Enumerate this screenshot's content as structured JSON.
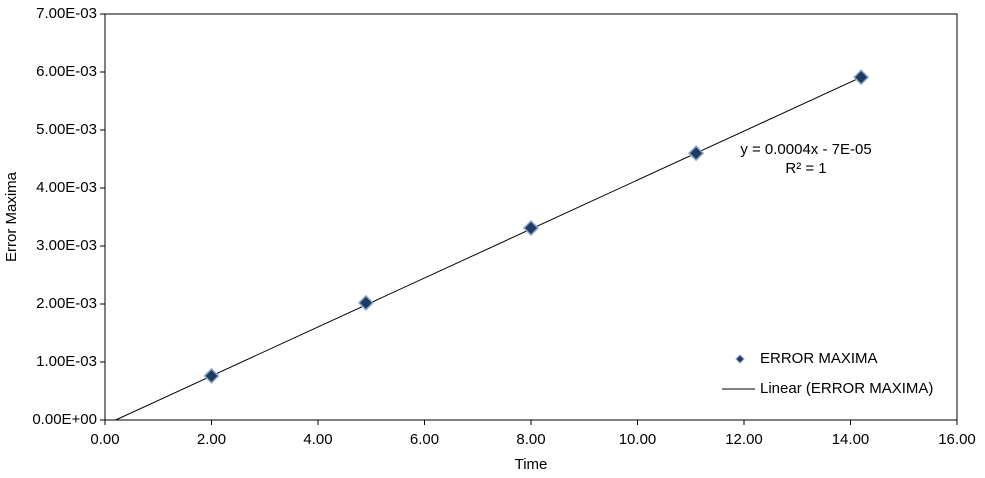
{
  "chart_data": {
    "type": "scatter",
    "x_label": "Time",
    "y_label": "Error Maxima",
    "series": [
      {
        "name": "ERROR MAXIMA",
        "color": "#1f3b64",
        "x": [
          2.0,
          4.9,
          8.0,
          11.1,
          14.2
        ],
        "values": [
          0.00076,
          0.00202,
          0.00331,
          0.0046,
          0.00591
        ]
      }
    ],
    "trendline": {
      "name": "Linear (ERROR MAXIMA)",
      "color": "#000000",
      "x": [
        0.2,
        14.2
      ],
      "values": [
        0,
        0.00591
      ]
    },
    "annotations": [
      "y = 0.0004x - 7E-05",
      "R² = 1"
    ],
    "xlim": [
      0,
      16
    ],
    "xticks": [
      {
        "value": 0,
        "label": "0.00"
      },
      {
        "value": 2,
        "label": "2.00"
      },
      {
        "value": 4,
        "label": "4.00"
      },
      {
        "value": 6,
        "label": "6.00"
      },
      {
        "value": 8,
        "label": "8.00"
      },
      {
        "value": 10,
        "label": "10.00"
      },
      {
        "value": 12,
        "label": "12.00"
      },
      {
        "value": 14,
        "label": "14.00"
      },
      {
        "value": 16,
        "label": "16.00"
      }
    ],
    "ylim": [
      0,
      0.007
    ],
    "yticks": [
      {
        "value": 0,
        "label": "0.00E+00"
      },
      {
        "value": 0.001,
        "label": "1.00E-03"
      },
      {
        "value": 0.002,
        "label": "2.00E-03"
      },
      {
        "value": 0.003,
        "label": "3.00E-03"
      },
      {
        "value": 0.004,
        "label": "4.00E-03"
      },
      {
        "value": 0.005,
        "label": "5.00E-03"
      },
      {
        "value": 0.006,
        "label": "6.00E-03"
      },
      {
        "value": 0.007,
        "label": "7.00E-03"
      }
    ],
    "grid": false,
    "legend": "lower right"
  }
}
